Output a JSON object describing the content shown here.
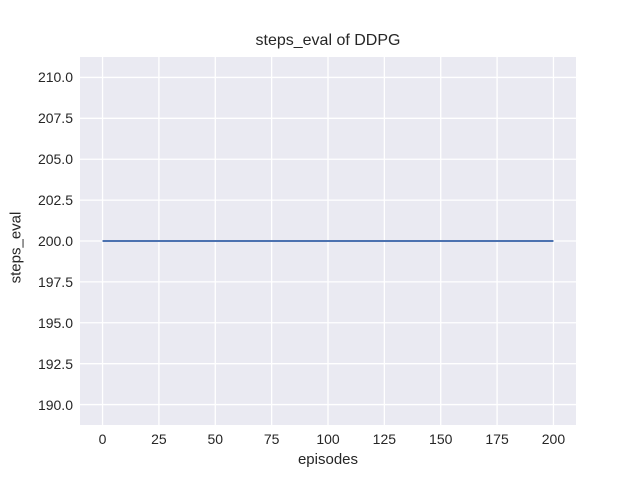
{
  "chart_data": {
    "type": "line",
    "title": "steps_eval of DDPG",
    "xlabel": "episodes",
    "ylabel": "steps_eval",
    "xlim": [
      -10,
      210
    ],
    "ylim": [
      188.75,
      211.25
    ],
    "xticks": [
      0,
      25,
      50,
      75,
      100,
      125,
      150,
      175,
      200
    ],
    "xtick_labels": [
      "0",
      "25",
      "50",
      "75",
      "100",
      "125",
      "150",
      "175",
      "200"
    ],
    "yticks": [
      190.0,
      192.5,
      195.0,
      197.5,
      200.0,
      202.5,
      205.0,
      207.5,
      210.0
    ],
    "ytick_labels": [
      "190.0",
      "192.5",
      "195.0",
      "197.5",
      "200.0",
      "202.5",
      "205.0",
      "207.5",
      "210.0"
    ],
    "grid": true,
    "legend": false,
    "series": [
      {
        "name": "DDPG",
        "x": [
          0,
          200
        ],
        "y": [
          200,
          200
        ],
        "color": "#4C72B0"
      }
    ],
    "style": {
      "figure_bg": "#FFFFFF",
      "axes_bg": "#EAEAF2",
      "grid_color": "#FFFFFF",
      "text_color": "#262626",
      "line_width": 2.1,
      "grid_width": 1.3
    }
  }
}
